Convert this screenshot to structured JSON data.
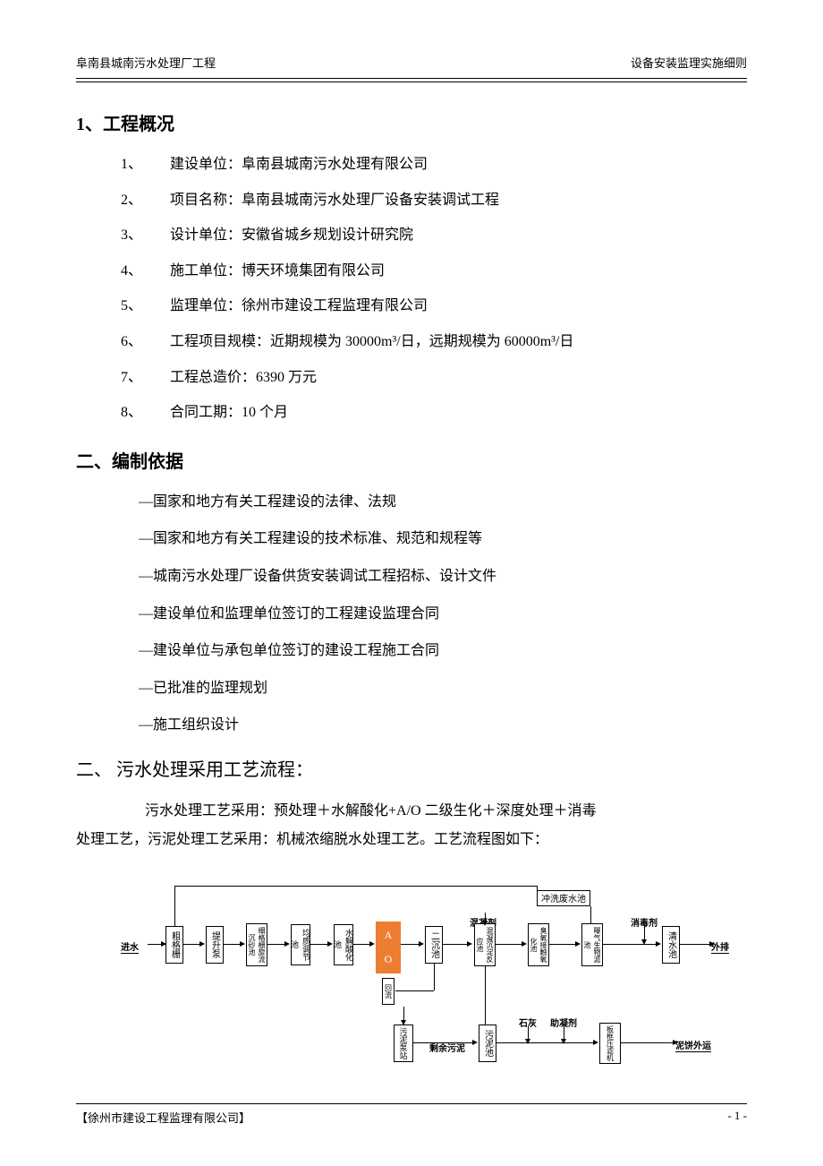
{
  "header": {
    "left": "阜南县城南污水处理厂工程",
    "right": "设备安装监理实施细则"
  },
  "section1": {
    "title": "1、工程概况",
    "items": [
      {
        "num": "1、",
        "text": "建设单位：阜南县城南污水处理有限公司"
      },
      {
        "num": "2、",
        "text": "项目名称：阜南县城南污水处理厂设备安装调试工程"
      },
      {
        "num": "3、",
        "text": "设计单位：安徽省城乡规划设计研究院"
      },
      {
        "num": "4、",
        "text": "施工单位：博天环境集团有限公司"
      },
      {
        "num": "5、",
        "text": "监理单位：徐州市建设工程监理有限公司"
      },
      {
        "num": "6、",
        "text": "工程项目规模：近期规模为 30000m³/日，远期规模为 60000m³/日"
      },
      {
        "num": "7、",
        "text": "工程总造价：6390 万元"
      },
      {
        "num": "8、",
        "text": "合同工期：10 个月"
      }
    ]
  },
  "section2": {
    "title": "二、编制依据",
    "items": [
      "—国家和地方有关工程建设的法律、法规",
      "—国家和地方有关工程建设的技术标准、规范和规程等",
      "—城南污水处理厂设备供货安装调试工程招标、设计文件",
      "—建设单位和监理单位签订的工程建设监理合同",
      "—建设单位与承包单位签订的建设工程施工合同",
      "—已批准的监理规划",
      "—施工组织设计"
    ]
  },
  "section3": {
    "title": "二、 污水处理采用工艺流程：",
    "para1": "污水处理工艺采用：预处理＋水解酸化+A/O 二级生化＋深度处理＋消毒",
    "para2": "处理工艺，污泥处理工艺采用：机械浓缩脱水处理工艺。工艺流程图如下："
  },
  "diagram": {
    "ao_color": "#ed7d31",
    "labels": {
      "inlet": "进水",
      "outlet": "外排",
      "sludge_out": "泥饼外运",
      "coagulant": "混凝剂",
      "disinfect": "消毒剂",
      "lime": "石灰",
      "flocculent": "助凝剂",
      "wash": "冲洗废水池",
      "remain": "剩余污泥"
    },
    "boxes": {
      "grille": "粗格栅",
      "pump": "提升泵",
      "fine_grille": "细格栅旋流沉砂池",
      "balance": "均质调节池",
      "hydrolysis": "水解酸化池",
      "ao_a": "A",
      "ao_o": "O",
      "sec_sed": "二沉池",
      "coag_react": "混凝沉淀反应池",
      "contact": "臭氧接触氧化池",
      "aeration": "曝气生物滤池",
      "clear": "清水池",
      "reflux": "回流",
      "sludge_pump": "污泥泵站",
      "sludge_pool": "污泥池",
      "dewatering": "板框压滤机"
    }
  },
  "footer": {
    "left": "【徐州市建设工程监理有限公司】",
    "right": "- 1 -"
  }
}
